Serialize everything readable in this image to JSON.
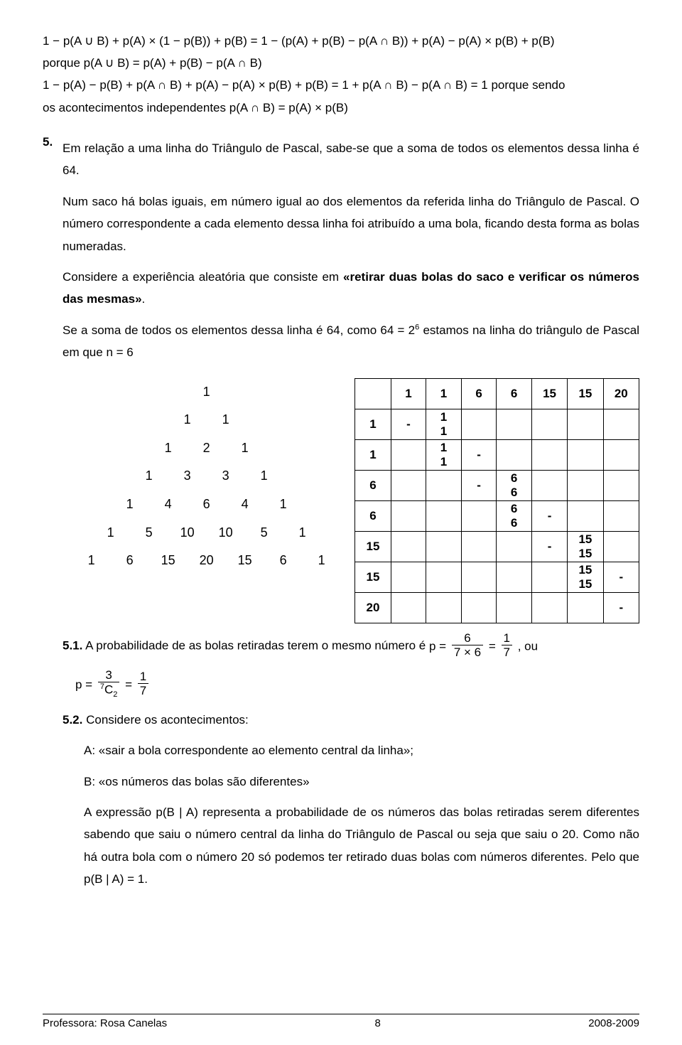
{
  "eq1": "1 − p(A ∪ B) + p(A) × (1 − p(B)) + p(B) = 1 − (p(A) + p(B) − p(A ∩ B)) + p(A) − p(A) × p(B) + p(B)",
  "eq2_pre": "porque ",
  "eq2": "p(A ∪ B) = p(A) + p(B) − p(A ∩ B)",
  "eq3": "1 − p(A) − p(B) + p(A ∩ B) + p(A) − p(A) × p(B) + p(B) = 1 + p(A ∩ B) − p(A ∩ B) = 1",
  "eq3_post": " porque sendo",
  "eq4_pre": "os acontecimentos independentes ",
  "eq4": "p(A ∩ B) = p(A) × p(B)",
  "sec5_num": "5.",
  "p5a": "Em relação a uma linha do Triângulo de Pascal, sabe-se que a soma de todos os elementos dessa linha é 64.",
  "p5b": "Num saco há bolas iguais, em número igual ao dos elementos da referida linha do Triângulo de Pascal. O número correspondente a cada elemento dessa linha foi atribuído a uma bola, ficando desta forma as bolas numeradas.",
  "p5c_pre": "Considere a experiência aleatória que consiste em ",
  "p5c_bold": "«retirar duas bolas do saco e verificar os números das mesmas»",
  "p5c_post": ".",
  "p5d_pre": "Se a soma de todos os elementos dessa linha é 64, como ",
  "p5d_eq": "64 = 2",
  "p5d_exp": "6",
  "p5d_post": " estamos na linha do triângulo de Pascal em que ",
  "p5d_n": "n = 6",
  "pascal": [
    [
      "1"
    ],
    [
      "1",
      "1"
    ],
    [
      "1",
      "2",
      "1"
    ],
    [
      "1",
      "3",
      "3",
      "1"
    ],
    [
      "1",
      "4",
      "6",
      "4",
      "1"
    ],
    [
      "1",
      "5",
      "10",
      "10",
      "5",
      "1"
    ],
    [
      "1",
      "6",
      "15",
      "20",
      "15",
      "6",
      "1"
    ]
  ],
  "grid_header": [
    "",
    "1",
    "1",
    "6",
    "6",
    "15",
    "15",
    "20"
  ],
  "grid_rows": [
    {
      "label": "1",
      "cells": [
        "-",
        "1\n1",
        "",
        "",
        "",
        "",
        ""
      ]
    },
    {
      "label": "1",
      "cells": [
        "",
        "1\n1",
        "-",
        "",
        "",
        "",
        ""
      ]
    },
    {
      "label": "6",
      "cells": [
        "",
        "",
        "-",
        "6\n6",
        "",
        "",
        ""
      ]
    },
    {
      "label": "6",
      "cells": [
        "",
        "",
        "",
        "6\n6",
        "-",
        "",
        ""
      ]
    },
    {
      "label": "15",
      "cells": [
        "",
        "",
        "",
        "",
        "-",
        "15\n15",
        ""
      ]
    },
    {
      "label": "15",
      "cells": [
        "",
        "",
        "",
        "",
        "",
        "15\n15",
        "-"
      ]
    },
    {
      "label": "20",
      "cells": [
        "",
        "",
        "",
        "",
        "",
        "",
        "-"
      ]
    }
  ],
  "s51_num": "5.1.",
  "s51_text": " A probabilidade de as bolas retiradas terem o mesmo número é ",
  "s51_p": "p = ",
  "s51_f1_top": "6",
  "s51_f1_bot": "7 × 6",
  "s51_eq": " = ",
  "s51_f2_top": "1",
  "s51_f2_bot": "7",
  "s51_post": ", ou",
  "s51b_p": "p = ",
  "s51b_f1_top": "3",
  "s51b_c7": "7",
  "s51b_C": "C",
  "s51b_c2": "2",
  "s51b_eq": " = ",
  "s51b_f2_top": "1",
  "s51b_f2_bot": "7",
  "s52_num": "5.2.",
  "s52_text": " Considere os acontecimentos:",
  "s52_A": "A: «sair a bola correspondente ao elemento central da linha»;",
  "s52_B": "B: «os números das bolas são diferentes»",
  "s52_exp_pre": "A expressão ",
  "s52_exp_eq": "p(B | A)",
  "s52_exp_post": " representa a probabilidade de os números das bolas retiradas serem diferentes sabendo que saiu o número central da linha do Triângulo de Pascal ou seja que saiu o 20. Como não há outra bola com o número 20 só podemos ter retirado duas bolas com números diferentes. Pelo que ",
  "s52_final": "p(B | A) = 1",
  "s52_dot": ".",
  "footer_left": "Professora: Rosa Canelas",
  "footer_center": "8",
  "footer_right": "2008-2009"
}
